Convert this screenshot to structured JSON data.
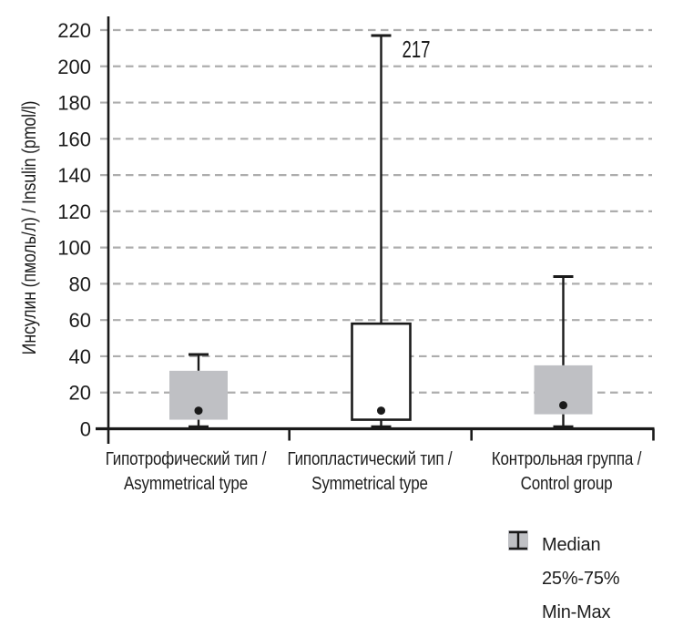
{
  "figure": {
    "background": "#ffffff",
    "text_color": "#1d1d1d",
    "axis_color": "#1a1a1a",
    "grid_color": "#adadad",
    "box_fill_gray": "#bfc0c4",
    "box_fill_white": "#ffffff"
  },
  "chart_data": {
    "type": "boxplot",
    "title": "",
    "xlabel": "",
    "ylabel": "Инсулин (пмоль/л) / Insulin (pmol/l)",
    "ylim": [
      0,
      220
    ],
    "ytick_step": 20,
    "grid": "horizontal-dashed",
    "legend_position": "bottom-right",
    "categories": [
      "Гипотрофический тип / Asymmetrical type",
      "Гипопластический тип / Symmetrical type",
      "Контрольная группа / Control group"
    ],
    "xtick_labels": [
      [
        "Гипотрофический тип /",
        "Asymmetrical type"
      ],
      [
        "Гипопластический тип /",
        "Symmetrical type"
      ],
      [
        "Контрольная группа /",
        "Control group"
      ]
    ],
    "series": [
      {
        "name": "Гипотрофический тип / Asymmetrical type",
        "min": 1,
        "q1": 5,
        "median": 10,
        "q3": 32,
        "max": 41,
        "box_style": "gray",
        "max_label": ""
      },
      {
        "name": "Гипопластический тип / Symmetrical type",
        "min": 1,
        "q1": 5,
        "median": 10,
        "q3": 58,
        "max": 217,
        "box_style": "white",
        "max_label": "217"
      },
      {
        "name": "Контрольная группа / Control group",
        "min": 1,
        "q1": 8,
        "median": 13,
        "q3": 35,
        "max": 84,
        "box_style": "gray",
        "max_label": ""
      }
    ],
    "legend": {
      "items": [
        {
          "symbol": "median-dot",
          "label": "Median"
        },
        {
          "symbol": "iqr-box",
          "label": "25%-75%"
        },
        {
          "symbol": "min-max-whisker",
          "label": "Min-Max"
        }
      ]
    }
  }
}
